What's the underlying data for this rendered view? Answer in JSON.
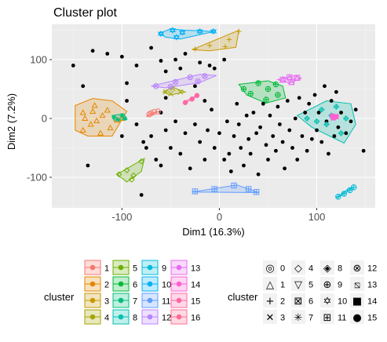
{
  "chart_data": {
    "type": "scatter",
    "title": "Cluster plot",
    "xlabel": "Dim1 (16.3%)",
    "ylabel": "Dim2 (7.2%)",
    "xlim": [
      -172,
      160
    ],
    "ylim": [
      -152,
      160
    ],
    "xticks": [
      -100,
      0,
      100
    ],
    "yticks": [
      -100,
      0,
      100
    ],
    "grid": true,
    "legend_position": "bottom",
    "legend_fill_title": "cluster",
    "legend_shape_title": "cluster",
    "clusters": [
      {
        "id": "1",
        "color": "#F8766D",
        "shape": "circle-open",
        "hull": [
          [
            -75,
            3
          ],
          [
            -64,
            11
          ],
          [
            -60,
            13
          ],
          [
            -72,
            8
          ]
        ],
        "points": [
          [
            -72,
            7
          ],
          [
            -67,
            11
          ],
          [
            -63,
            12
          ],
          [
            -70,
            9
          ]
        ]
      },
      {
        "id": "2",
        "color": "#E58700",
        "shape": "triangle-open",
        "hull": [
          [
            -148,
            22
          ],
          [
            -130,
            34
          ],
          [
            -110,
            30
          ],
          [
            -95,
            12
          ],
          [
            -110,
            -30
          ],
          [
            -135,
            -30
          ],
          [
            -148,
            -20
          ]
        ],
        "points": [
          [
            -140,
            -20
          ],
          [
            -132,
            -10
          ],
          [
            -126,
            -4
          ],
          [
            -120,
            5
          ],
          [
            -112,
            -16
          ],
          [
            -105,
            -3
          ],
          [
            -115,
            14
          ],
          [
            -130,
            12
          ],
          [
            -138,
            0
          ],
          [
            -122,
            -25
          ],
          [
            -100,
            0
          ],
          [
            -140,
            10
          ],
          [
            -128,
            22
          ]
        ]
      },
      {
        "id": "3",
        "color": "#C99800",
        "shape": "plus",
        "hull": [
          [
            -28,
            117
          ],
          [
            20,
            150
          ],
          [
            17,
            121
          ],
          [
            -10,
            115
          ]
        ],
        "points": [
          [
            -25,
            118
          ],
          [
            -10,
            124
          ],
          [
            10,
            134
          ],
          [
            20,
            148
          ],
          [
            6,
            122
          ]
        ]
      },
      {
        "id": "4",
        "color": "#A3A500",
        "shape": "cross",
        "hull": [
          [
            -58,
            45
          ],
          [
            -48,
            53
          ],
          [
            -35,
            45
          ],
          [
            -50,
            40
          ]
        ],
        "points": [
          [
            -55,
            45
          ],
          [
            -48,
            51
          ],
          [
            -40,
            45
          ],
          [
            -50,
            42
          ]
        ]
      },
      {
        "id": "5",
        "color": "#6BB100",
        "shape": "diamond-open",
        "hull": [
          [
            -105,
            -95
          ],
          [
            -77,
            -68
          ],
          [
            -80,
            -90
          ],
          [
            -95,
            -108
          ]
        ],
        "points": [
          [
            -103,
            -95
          ],
          [
            -95,
            -88
          ],
          [
            -88,
            -97
          ],
          [
            -80,
            -73
          ],
          [
            -90,
            -104
          ]
        ]
      },
      {
        "id": "6",
        "color": "#00BA38",
        "shape": "circle-plus",
        "hull": [
          [
            20,
            58
          ],
          [
            50,
            64
          ],
          [
            65,
            55
          ],
          [
            68,
            35
          ],
          [
            48,
            26
          ],
          [
            28,
            40
          ]
        ],
        "points": [
          [
            25,
            50
          ],
          [
            40,
            60
          ],
          [
            58,
            58
          ],
          [
            60,
            40
          ],
          [
            48,
            32
          ],
          [
            32,
            42
          ],
          [
            50,
            50
          ]
        ]
      },
      {
        "id": "7",
        "color": "#00BF7D",
        "shape": "star",
        "hull": [
          [
            -110,
            5
          ],
          [
            -98,
            8
          ],
          [
            -95,
            -2
          ],
          [
            -108,
            -4
          ]
        ],
        "points": [
          [
            -108,
            2
          ],
          [
            -100,
            5
          ],
          [
            -97,
            0
          ],
          [
            -104,
            -2
          ]
        ]
      },
      {
        "id": "8",
        "color": "#00C0AF",
        "shape": "diamond-plus",
        "hull": [
          [
            80,
            5
          ],
          [
            110,
            30
          ],
          [
            135,
            25
          ],
          [
            140,
            -10
          ],
          [
            128,
            -42
          ],
          [
            95,
            -15
          ]
        ],
        "points": [
          [
            90,
            0
          ],
          [
            105,
            15
          ],
          [
            120,
            20
          ],
          [
            130,
            0
          ],
          [
            125,
            -25
          ],
          [
            110,
            -10
          ],
          [
            100,
            -5
          ],
          [
            115,
            5
          ]
        ]
      },
      {
        "id": "9",
        "color": "#00BCD8",
        "shape": "circle-star",
        "hull": [
          [
            120,
            -135
          ],
          [
            128,
            -128
          ],
          [
            138,
            -117
          ],
          [
            132,
            -120
          ]
        ],
        "points": [
          [
            122,
            -133
          ],
          [
            128,
            -128
          ],
          [
            134,
            -122
          ],
          [
            138,
            -117
          ]
        ]
      },
      {
        "id": "10",
        "color": "#00B0F6",
        "shape": "hexagram",
        "hull": [
          [
            -62,
            145
          ],
          [
            -50,
            152
          ],
          [
            -35,
            150
          ],
          [
            -5,
            148
          ],
          [
            -40,
            135
          ],
          [
            -55,
            138
          ]
        ],
        "points": [
          [
            -60,
            144
          ],
          [
            -48,
            150
          ],
          [
            -38,
            146
          ],
          [
            -20,
            148
          ],
          [
            -6,
            148
          ],
          [
            -44,
            138
          ]
        ]
      },
      {
        "id": "11",
        "color": "#619CFF",
        "shape": "square-plus",
        "hull": [
          [
            -28,
            -125
          ],
          [
            18,
            -113
          ],
          [
            40,
            -126
          ]
        ],
        "points": [
          [
            -25,
            -124
          ],
          [
            -5,
            -120
          ],
          [
            15,
            -114
          ],
          [
            30,
            -120
          ],
          [
            38,
            -125
          ]
        ]
      },
      {
        "id": "12",
        "color": "#B983FF",
        "shape": "circle-cross",
        "hull": [
          [
            -70,
            55
          ],
          [
            -20,
            75
          ],
          [
            -3,
            73
          ],
          [
            -20,
            61
          ],
          [
            -55,
            52
          ]
        ],
        "points": [
          [
            -65,
            55
          ],
          [
            -45,
            62
          ],
          [
            -30,
            70
          ],
          [
            -15,
            72
          ],
          [
            -22,
            63
          ],
          [
            -50,
            54
          ]
        ]
      },
      {
        "id": "13",
        "color": "#E76BF3",
        "shape": "square-triangle",
        "hull": [
          [
            60,
            66
          ],
          [
            78,
            73
          ],
          [
            84,
            68
          ],
          [
            72,
            60
          ]
        ],
        "points": [
          [
            65,
            66
          ],
          [
            72,
            70
          ],
          [
            80,
            69
          ],
          [
            74,
            62
          ]
        ]
      },
      {
        "id": "14",
        "color": "#FD61D1",
        "shape": "square-filled",
        "hull": [
          [
            115,
            5
          ],
          [
            121,
            7
          ],
          [
            119,
            0
          ],
          [
            115,
            0
          ]
        ],
        "points": [
          [
            116,
            4
          ],
          [
            120,
            3
          ],
          [
            117,
            1
          ]
        ]
      },
      {
        "id": "15",
        "color": "#FF67A4",
        "shape": "circle-filled",
        "hull": [
          [
            -37,
            25
          ],
          [
            -28,
            32
          ],
          [
            -22,
            40
          ],
          [
            -34,
            30
          ]
        ],
        "points": [
          [
            -35,
            27
          ],
          [
            -28,
            33
          ],
          [
            -23,
            39
          ]
        ]
      }
    ],
    "other_points": [
      [
        -150,
        90
      ],
      [
        -140,
        55
      ],
      [
        -135,
        -80
      ],
      [
        -100,
        -30
      ],
      [
        -95,
        30
      ],
      [
        -80,
        -130
      ],
      [
        -85,
        -10
      ],
      [
        -78,
        -40
      ],
      [
        -75,
        -50
      ],
      [
        -70,
        -30
      ],
      [
        -65,
        -70
      ],
      [
        -60,
        -80
      ],
      [
        -55,
        -20
      ],
      [
        -50,
        -50
      ],
      [
        -45,
        -5
      ],
      [
        -40,
        -60
      ],
      [
        -35,
        -25
      ],
      [
        -30,
        -85
      ],
      [
        -25,
        -10
      ],
      [
        -20,
        -40
      ],
      [
        -15,
        -70
      ],
      [
        -12,
        -20
      ],
      [
        -8,
        15
      ],
      [
        -5,
        -50
      ],
      [
        0,
        -25
      ],
      [
        5,
        -70
      ],
      [
        8,
        -5
      ],
      [
        10,
        -60
      ],
      [
        12,
        -90
      ],
      [
        15,
        -30
      ],
      [
        18,
        25
      ],
      [
        20,
        -10
      ],
      [
        22,
        -50
      ],
      [
        25,
        -80
      ],
      [
        28,
        5
      ],
      [
        30,
        -35
      ],
      [
        32,
        -60
      ],
      [
        35,
        10
      ],
      [
        38,
        -25
      ],
      [
        40,
        -95
      ],
      [
        42,
        -15
      ],
      [
        45,
        25
      ],
      [
        48,
        -45
      ],
      [
        50,
        -70
      ],
      [
        52,
        5
      ],
      [
        55,
        -30
      ],
      [
        58,
        -55
      ],
      [
        60,
        20
      ],
      [
        62,
        -10
      ],
      [
        65,
        -40
      ],
      [
        67,
        -85
      ],
      [
        70,
        30
      ],
      [
        72,
        -20
      ],
      [
        75,
        -50
      ],
      [
        78,
        0
      ],
      [
        80,
        -70
      ],
      [
        82,
        35
      ],
      [
        85,
        -30
      ],
      [
        88,
        10
      ],
      [
        90,
        -55
      ],
      [
        92,
        25
      ],
      [
        95,
        -35
      ],
      [
        98,
        40
      ],
      [
        100,
        -20
      ],
      [
        102,
        10
      ],
      [
        105,
        -40
      ],
      [
        108,
        55
      ],
      [
        110,
        -5
      ],
      [
        112,
        -60
      ],
      [
        115,
        30
      ],
      [
        118,
        -30
      ],
      [
        120,
        45
      ],
      [
        122,
        -15
      ],
      [
        125,
        10
      ],
      [
        130,
        -25
      ],
      [
        135,
        -5
      ],
      [
        140,
        15
      ],
      [
        148,
        -55
      ],
      [
        -115,
        110
      ],
      [
        -100,
        105
      ],
      [
        -60,
        98
      ],
      [
        -45,
        100
      ],
      [
        -35,
        110
      ],
      [
        -20,
        95
      ],
      [
        -10,
        90
      ],
      [
        5,
        100
      ],
      [
        -5,
        85
      ],
      [
        -55,
        80
      ],
      [
        -40,
        85
      ],
      [
        -25,
        55
      ],
      [
        -15,
        30
      ],
      [
        -85,
        90
      ],
      [
        -70,
        120
      ],
      [
        -130,
        115
      ],
      [
        -95,
        60
      ],
      [
        -60,
        10
      ],
      [
        -55,
        35
      ]
    ],
    "legend_shapes": [
      {
        "id": "0",
        "glyph": "◎"
      },
      {
        "id": "1",
        "glyph": "△"
      },
      {
        "id": "2",
        "glyph": "+"
      },
      {
        "id": "3",
        "glyph": "✕"
      },
      {
        "id": "4",
        "glyph": "◇"
      },
      {
        "id": "5",
        "glyph": "▽"
      },
      {
        "id": "6",
        "glyph": "⊠"
      },
      {
        "id": "7",
        "glyph": "✳"
      },
      {
        "id": "8",
        "glyph": "◈"
      },
      {
        "id": "9",
        "glyph": "⊕"
      },
      {
        "id": "10",
        "glyph": "✡"
      },
      {
        "id": "11",
        "glyph": "⊞"
      },
      {
        "id": "12",
        "glyph": "⊗"
      },
      {
        "id": "13",
        "glyph": "⧅"
      },
      {
        "id": "14",
        "glyph": "■"
      },
      {
        "id": "15",
        "glyph": "●"
      }
    ],
    "legend_fill": [
      {
        "id": "1",
        "color": "#F8766D"
      },
      {
        "id": "2",
        "color": "#E58700"
      },
      {
        "id": "3",
        "color": "#C99800"
      },
      {
        "id": "4",
        "color": "#A3A500"
      },
      {
        "id": "5",
        "color": "#6BB100"
      },
      {
        "id": "6",
        "color": "#00BA38"
      },
      {
        "id": "7",
        "color": "#00BF7D"
      },
      {
        "id": "8",
        "color": "#00C0AF"
      },
      {
        "id": "9",
        "color": "#00BCD8"
      },
      {
        "id": "10",
        "color": "#00B0F6"
      },
      {
        "id": "11",
        "color": "#619CFF"
      },
      {
        "id": "12",
        "color": "#B983FF"
      },
      {
        "id": "13",
        "color": "#E76BF3"
      },
      {
        "id": "14",
        "color": "#FD61D1"
      },
      {
        "id": "15",
        "color": "#FF67A4"
      },
      {
        "id": "16",
        "color": "#FF6C91"
      }
    ]
  }
}
